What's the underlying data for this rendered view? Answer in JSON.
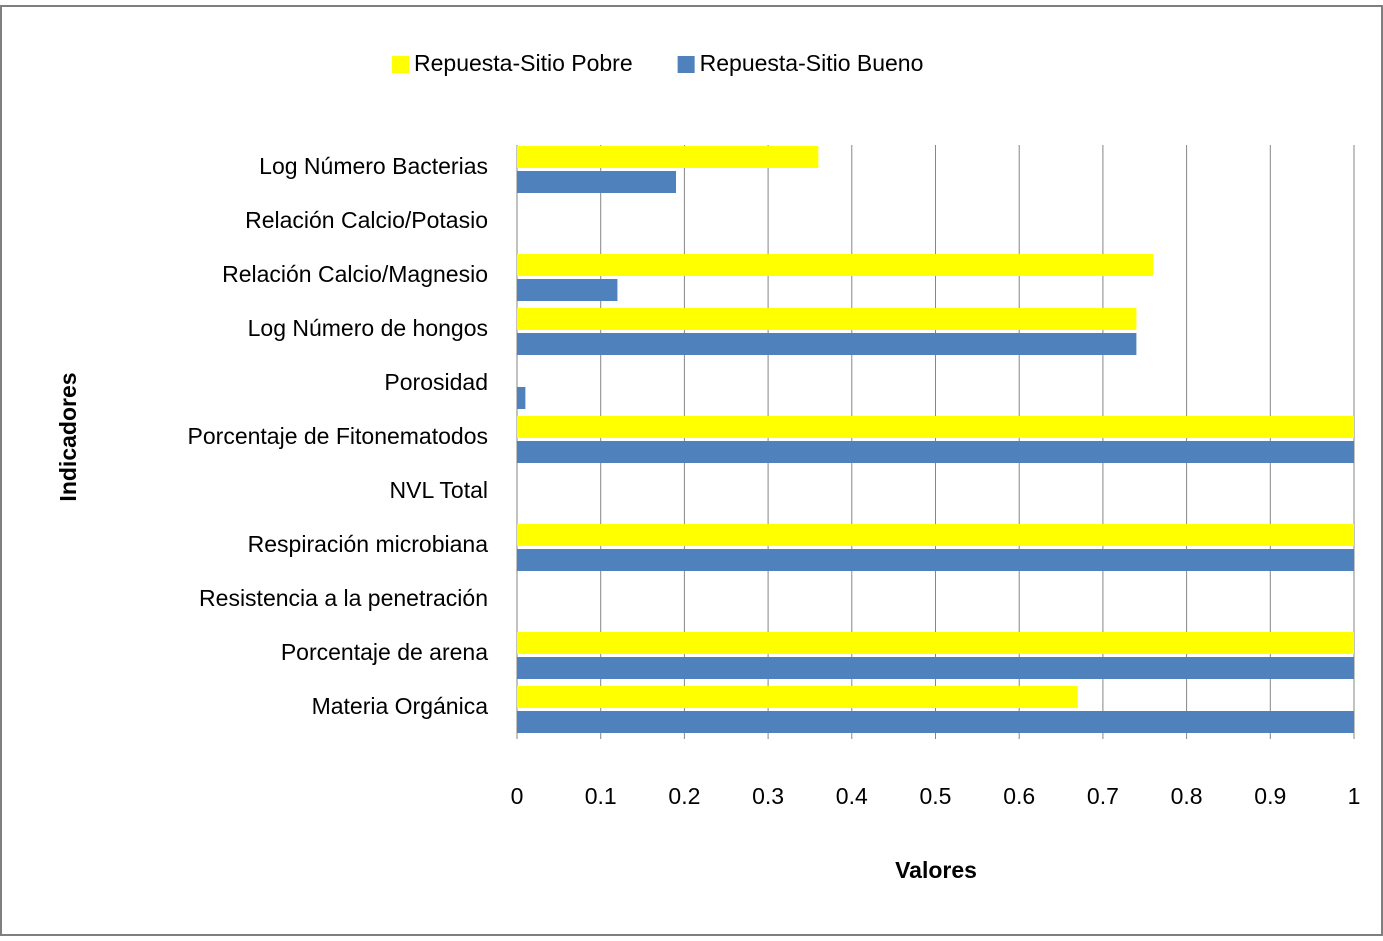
{
  "chart_data": {
    "type": "bar",
    "orientation": "horizontal",
    "xlabel": "Valores",
    "ylabel": "Indicadores",
    "categories": [
      "Log Número Bacterias",
      "Relación Calcio/Potasio",
      "Relación Calcio/Magnesio",
      "Log Número de hongos",
      "Porosidad",
      "Porcentaje de Fitonematodos",
      "NVL Total",
      "Respiración microbiana",
      "Resistencia a la penetración",
      "Porcentaje de arena",
      "Materia Orgánica"
    ],
    "series": [
      {
        "name": "Repuesta-Sitio Pobre",
        "color": "#ffff00",
        "values": [
          0.36,
          0,
          0.76,
          0.74,
          0,
          1,
          0,
          1,
          0,
          1,
          0.67
        ]
      },
      {
        "name": "Repuesta-Sitio Bueno",
        "color": "#4f81bd",
        "values": [
          0.19,
          0,
          0.12,
          0.74,
          0.01,
          1,
          0,
          1,
          0,
          1,
          1
        ]
      }
    ],
    "xlim": [
      0,
      1
    ],
    "xticks": [
      0,
      0.1,
      0.2,
      0.3,
      0.4,
      0.5,
      0.6,
      0.7,
      0.8,
      0.9,
      1
    ],
    "grid": true,
    "legend": "top"
  }
}
